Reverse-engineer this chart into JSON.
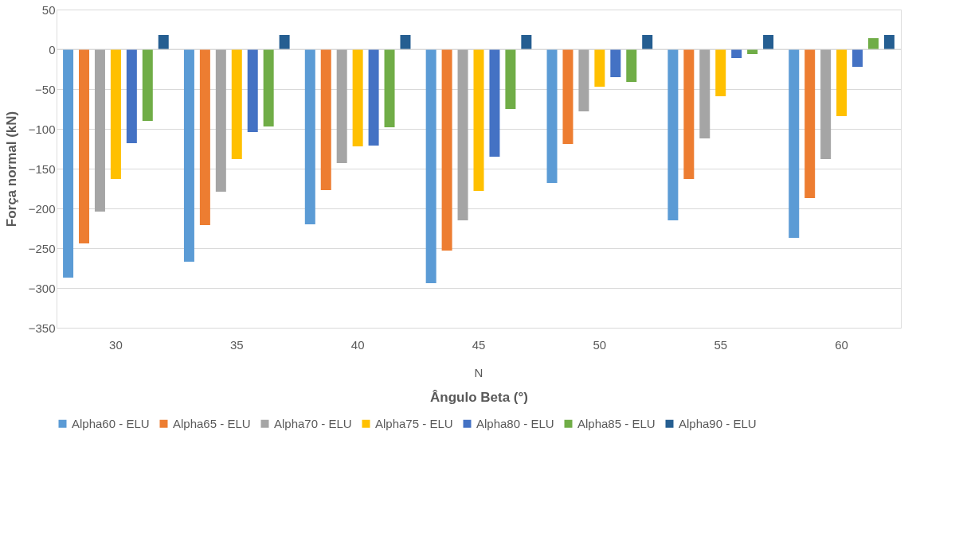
{
  "chart_data": {
    "type": "bar",
    "xlabel": "Ângulo Beta (°)",
    "ylabel": "Força normal (kN)",
    "categories": [
      "30",
      "35",
      "40",
      "45",
      "50",
      "55",
      "60"
    ],
    "series": [
      {
        "name": "Alpha60 - ELU",
        "color": "#5b9bd5",
        "values": [
          -287,
          -267,
          -220,
          -294,
          -168,
          -215,
          -237
        ]
      },
      {
        "name": "Alpha65 - ELU",
        "color": "#ed7d31",
        "values": [
          -244,
          -221,
          -177,
          -253,
          -119,
          -163,
          -187
        ]
      },
      {
        "name": "Alpha70 - ELU",
        "color": "#a5a5a5",
        "values": [
          -204,
          -179,
          -143,
          -215,
          -78,
          -112,
          -138
        ]
      },
      {
        "name": "Alpha75 - ELU",
        "color": "#ffc000",
        "values": [
          -163,
          -138,
          -122,
          -178,
          -47,
          -59,
          -84
        ]
      },
      {
        "name": "Alpha80 - ELU",
        "color": "#4472c4",
        "values": [
          -118,
          -104,
          -121,
          -135,
          -35,
          -11,
          -22
        ]
      },
      {
        "name": "Alpha85 - ELU",
        "color": "#70ad47",
        "values": [
          -90,
          -97,
          -98,
          -75,
          -41,
          -6,
          14
        ]
      },
      {
        "name": "Alpha90 - ELU",
        "color": "#255e91",
        "values": [
          18,
          18,
          18,
          18,
          18,
          18,
          18
        ]
      }
    ],
    "ylim": [
      -350,
      50
    ],
    "yticks": [
      -350,
      -300,
      -250,
      -200,
      -150,
      -100,
      -50,
      0,
      50
    ],
    "grid": "y",
    "legend": "bottom",
    "annotations": [
      "N"
    ]
  }
}
